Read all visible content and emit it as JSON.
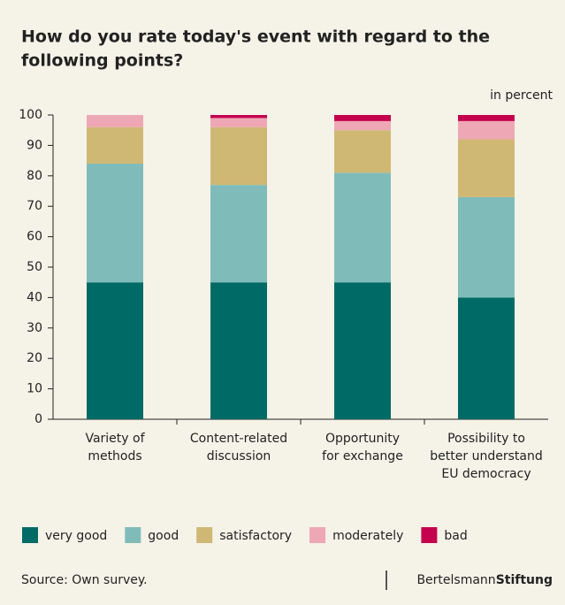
{
  "chart_data": {
    "type": "stacked_bar",
    "title": [
      "How do you rate today's event with regard to the",
      "following points?"
    ],
    "unit_label": "in percent",
    "categories": [
      [
        "Variety of",
        "methods"
      ],
      [
        "Content-related",
        "discussion"
      ],
      [
        "Opportunity",
        "for exchange"
      ],
      [
        "Possibility to",
        "better understand",
        "EU democracy"
      ]
    ],
    "series": [
      {
        "name": "very good",
        "color": "#006b66",
        "values": [
          45,
          45,
          45,
          40
        ]
      },
      {
        "name": "good",
        "color": "#7fbcb9",
        "values": [
          39,
          32,
          36,
          33
        ]
      },
      {
        "name": "satisfactory",
        "color": "#cfb874",
        "values": [
          12,
          19,
          14,
          19
        ]
      },
      {
        "name": "moderately",
        "color": "#eea7b5",
        "values": [
          4,
          3,
          3,
          6
        ]
      },
      {
        "name": "bad",
        "color": "#c4024e",
        "values": [
          0,
          1,
          2,
          2
        ]
      }
    ],
    "ylim": [
      0,
      100
    ],
    "yticks": [
      0,
      10,
      20,
      30,
      40,
      50,
      60,
      70,
      80,
      90,
      100
    ],
    "source": "Source: Own survey.",
    "brand": [
      "Bertelsmann",
      "Stiftung"
    ]
  }
}
